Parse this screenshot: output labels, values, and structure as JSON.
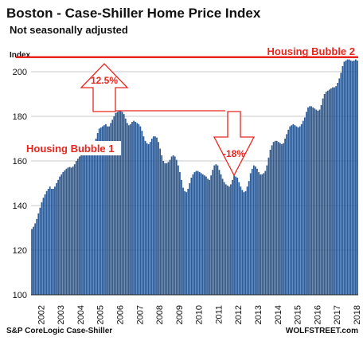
{
  "chart_data": {
    "type": "bar",
    "title": "Boston - Case-Shiller Home Price Index",
    "subtitle": "Not seasonally adjusted",
    "ylabel": "Index",
    "ylim": [
      100,
      210
    ],
    "yticks": [
      100,
      120,
      140,
      160,
      180,
      200
    ],
    "x_tick_labels": [
      "2002",
      "2003",
      "2004",
      "2005",
      "2006",
      "2007",
      "2008",
      "2009",
      "2010",
      "2011",
      "2012",
      "2013",
      "2014",
      "2015",
      "2016",
      "2017",
      "2018"
    ],
    "bar_color": "#2f5b94",
    "reference_line": {
      "value": 206.5,
      "color": "#e8261f"
    },
    "annotations": {
      "bubble1": "Housing Bubble 1",
      "bubble2": "Housing Bubble 2",
      "peak_increase": "12.5%",
      "decline": "-18%"
    },
    "source": "S&P CoreLogic Case-Shiller",
    "credit": "WOLFSTREET.com",
    "series": [
      {
        "start": "2002-01",
        "frequency": "monthly",
        "values": [
          129.5,
          130.5,
          132.0,
          134.0,
          136.5,
          139.0,
          141.5,
          143.5,
          145.0,
          146.5,
          147.5,
          148.5,
          147.5,
          147.5,
          148.5,
          150.0,
          151.5,
          153.0,
          154.0,
          155.0,
          155.8,
          156.5,
          157.0,
          157.3,
          157.0,
          157.5,
          158.5,
          160.0,
          161.0,
          162.0,
          163.0,
          164.0,
          165.0,
          166.0,
          166.5,
          166.5,
          166.0,
          166.5,
          168.0,
          170.0,
          172.5,
          174.5,
          175.0,
          175.5,
          176.0,
          176.5,
          175.5,
          175.5,
          177.0,
          178.5,
          180.0,
          181.5,
          182.0,
          182.5,
          182.5,
          182.0,
          181.0,
          179.0,
          177.0,
          176.0,
          176.5,
          177.5,
          178.0,
          177.5,
          177.0,
          176.5,
          175.5,
          173.5,
          171.0,
          169.0,
          168.0,
          167.5,
          168.5,
          170.0,
          171.0,
          171.0,
          170.5,
          168.5,
          165.5,
          162.5,
          160.0,
          159.0,
          159.0,
          159.5,
          160.5,
          162.0,
          162.5,
          162.0,
          160.5,
          158.0,
          155.0,
          151.5,
          148.0,
          146.5,
          146.0,
          147.5,
          150.0,
          152.5,
          154.0,
          155.0,
          155.5,
          155.5,
          155.0,
          154.5,
          154.0,
          153.5,
          153.0,
          152.0,
          151.5,
          153.5,
          156.0,
          158.0,
          158.5,
          158.0,
          156.0,
          154.0,
          152.0,
          150.5,
          149.5,
          149.0,
          148.5,
          149.5,
          151.5,
          153.5,
          153.0,
          152.5,
          150.5,
          148.5,
          147.0,
          146.0,
          146.5,
          148.5,
          151.0,
          154.5,
          156.5,
          158.0,
          157.5,
          156.5,
          155.0,
          154.0,
          154.0,
          154.5,
          155.5,
          158.0,
          161.5,
          165.0,
          167.0,
          168.5,
          169.0,
          169.0,
          168.5,
          168.0,
          167.5,
          168.0,
          170.0,
          172.0,
          174.0,
          175.5,
          176.0,
          176.5,
          176.0,
          175.5,
          175.0,
          175.5,
          176.5,
          178.0,
          179.5,
          182.0,
          184.0,
          184.5,
          184.5,
          184.0,
          183.5,
          183.0,
          182.5,
          183.0,
          185.0,
          188.0,
          190.0,
          191.0,
          191.5,
          192.0,
          192.5,
          193.0,
          193.0,
          193.5,
          195.0,
          197.0,
          199.5,
          202.5,
          204.5,
          205.0,
          205.5,
          205.5,
          205.0,
          204.8,
          205.0,
          205.5,
          205.0
        ]
      }
    ]
  }
}
